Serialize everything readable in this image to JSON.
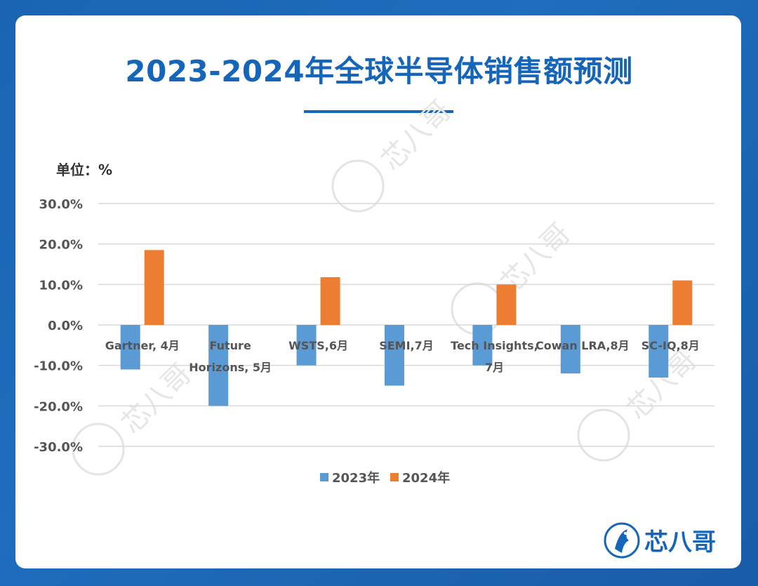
{
  "title": "2023-2024年全球半导体销售额预测",
  "unit_label": "单位：%",
  "brand": {
    "name": "芯八哥",
    "watermark": "芯八哥"
  },
  "colors": {
    "series_2023": "#5b9bd5",
    "series_2024": "#ed7d31",
    "accent": "#1565b8"
  },
  "chart_data": {
    "type": "bar",
    "categories": [
      "Gartner, 4月",
      "Future Horizons, 5月",
      "WSTS,6月",
      "SEMI,7月",
      "Tech Insights, 7月",
      "Cowan LRA,8月",
      "SC-IQ,8月"
    ],
    "category_lines": [
      [
        "Gartner, 4月"
      ],
      [
        "Future",
        "Horizons, 5月"
      ],
      [
        "WSTS,6月"
      ],
      [
        "SEMI,7月"
      ],
      [
        "Tech Insights,",
        "7月"
      ],
      [
        "Cowan LRA,8月"
      ],
      [
        "SC-IQ,8月"
      ]
    ],
    "series": [
      {
        "name": "2023年",
        "values": [
          -11.0,
          -20.0,
          -10.0,
          -15.0,
          -10.0,
          -12.0,
          -13.0
        ]
      },
      {
        "name": "2024年",
        "values": [
          18.5,
          null,
          11.8,
          null,
          10.0,
          null,
          11.0
        ]
      }
    ],
    "ylim": [
      -30,
      30
    ],
    "yticks": [
      "30.0%",
      "20.0%",
      "10.0%",
      "0.0%",
      "-10.0%",
      "-20.0%",
      "-30.0%"
    ],
    "ytick_values": [
      30,
      20,
      10,
      0,
      -10,
      -20,
      -30
    ],
    "grid": true,
    "legend": "bottom"
  }
}
